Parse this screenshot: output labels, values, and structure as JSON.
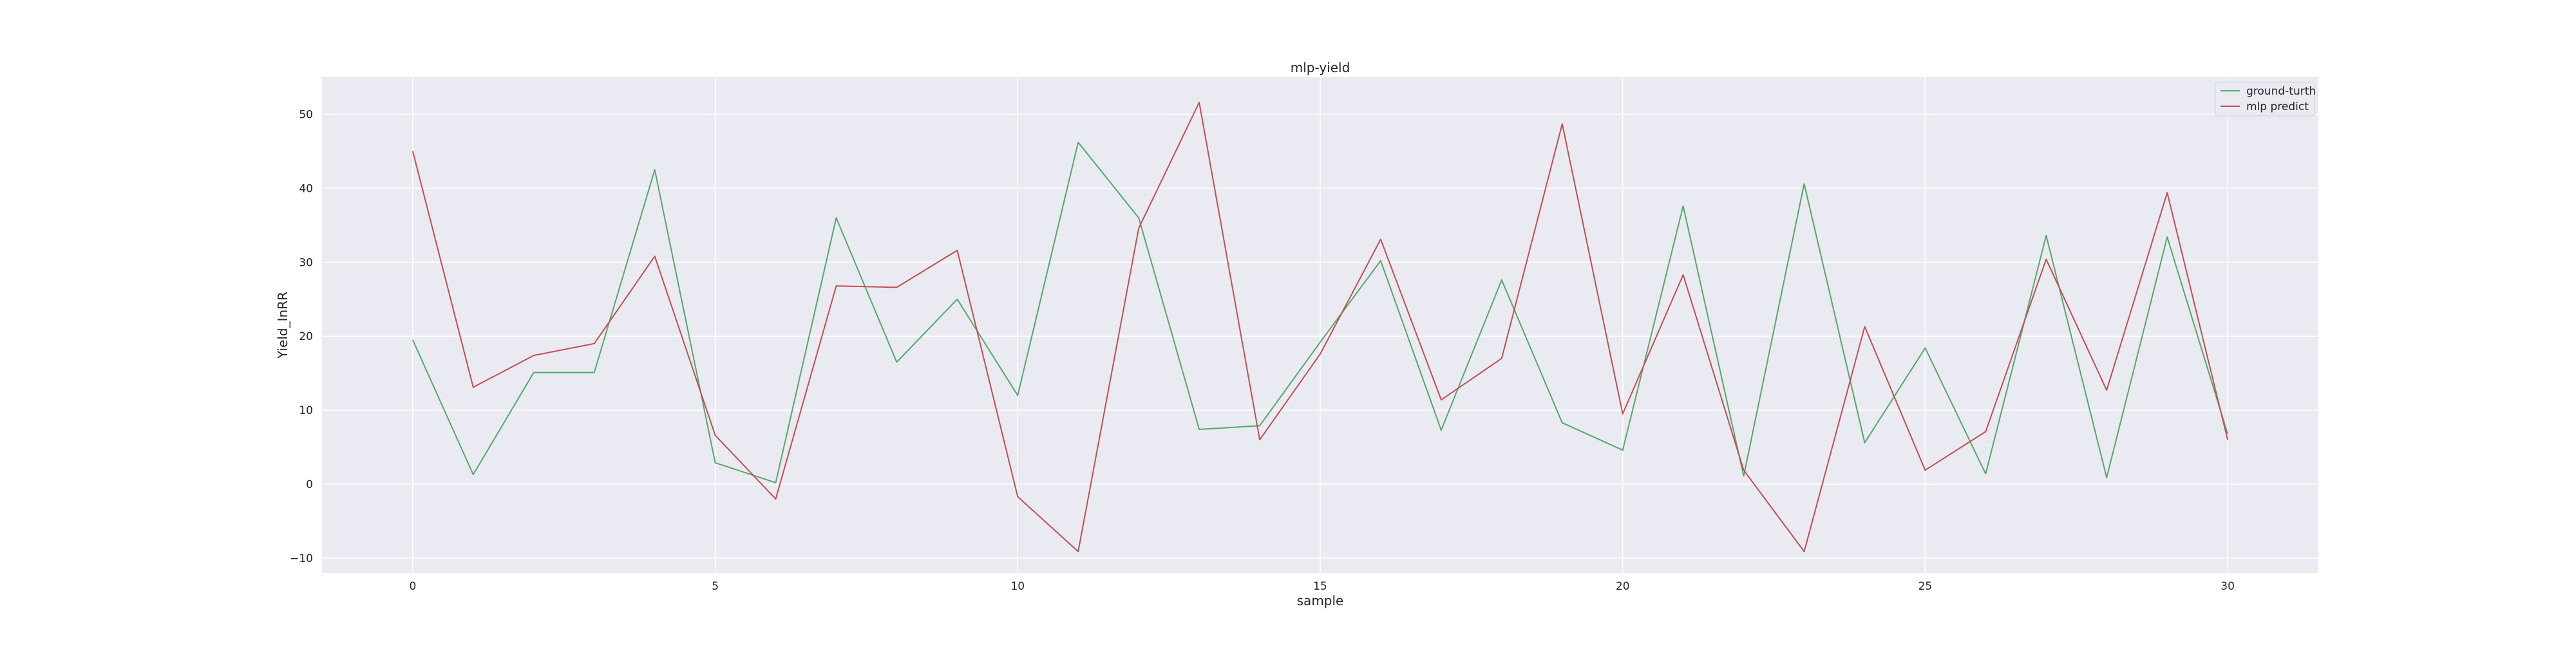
{
  "chart_data": {
    "type": "line",
    "title": "mlp-yield",
    "xlabel": "sample",
    "ylabel": "Yield_InRR",
    "xlim": [
      -1.5,
      31.5
    ],
    "ylim": [
      -12,
      55
    ],
    "xticks": [
      0,
      5,
      10,
      15,
      20,
      25,
      30
    ],
    "yticks": [
      -10,
      0,
      10,
      20,
      30,
      40,
      50
    ],
    "grid": true,
    "legend_position": "top-right",
    "x": [
      0,
      1,
      2,
      3,
      4,
      5,
      6,
      7,
      8,
      9,
      10,
      11,
      12,
      13,
      14,
      15,
      16,
      17,
      18,
      19,
      20,
      21,
      22,
      23,
      24,
      25,
      26,
      27,
      28,
      29,
      30
    ],
    "series": [
      {
        "name": "ground-turth",
        "color": "#55a868",
        "values": [
          19.5,
          1.3,
          15.1,
          15.1,
          42.5,
          2.9,
          0.2,
          36.0,
          16.5,
          25.0,
          12.0,
          46.2,
          36.0,
          7.4,
          7.9,
          19.2,
          30.2,
          7.3,
          27.6,
          8.3,
          4.6,
          37.6,
          1.1,
          40.6,
          5.6,
          18.4,
          1.4,
          33.6,
          0.9,
          33.4,
          6.8
        ]
      },
      {
        "name": "mlp predict",
        "color": "#c44e52",
        "values": [
          45.0,
          13.1,
          17.4,
          19.0,
          30.8,
          6.6,
          -2.0,
          26.8,
          26.6,
          31.6,
          -1.7,
          -9.1,
          34.6,
          51.6,
          6.0,
          17.6,
          33.1,
          11.4,
          17.0,
          48.7,
          9.5,
          28.3,
          1.9,
          -9.1,
          21.3,
          1.9,
          7.1,
          30.4,
          12.7,
          39.4,
          6.0
        ]
      }
    ]
  }
}
